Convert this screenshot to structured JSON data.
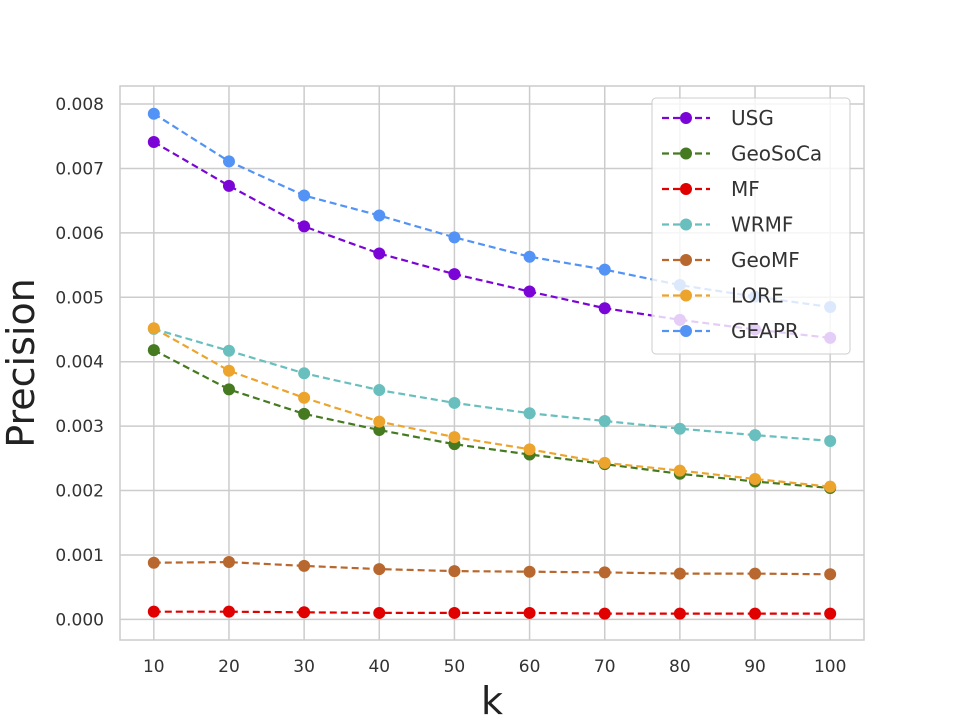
{
  "chart_data": {
    "type": "line",
    "title": "",
    "xlabel": "k",
    "ylabel": "Precision",
    "x": [
      10,
      20,
      30,
      40,
      50,
      60,
      70,
      80,
      90,
      100
    ],
    "x_tick_labels": [
      "10",
      "20",
      "30",
      "40",
      "50",
      "60",
      "70",
      "80",
      "90",
      "100"
    ],
    "y_ticks": [
      0.0,
      0.001,
      0.002,
      0.003,
      0.004,
      0.005,
      0.006,
      0.007,
      0.008
    ],
    "y_tick_labels": [
      "0.000",
      "0.001",
      "0.002",
      "0.003",
      "0.004",
      "0.005",
      "0.006",
      "0.007",
      "0.008"
    ],
    "xlim": [
      5.5,
      104.5
    ],
    "ylim": [
      -0.00032,
      0.00828
    ],
    "grid": true,
    "legend_position": "top-right",
    "line_style": "dashed",
    "marker": "circle",
    "series": [
      {
        "name": "USG",
        "color": "#7b05d6",
        "values": [
          0.00741,
          0.00673,
          0.0061,
          0.00568,
          0.00536,
          0.00509,
          0.00483,
          0.00465,
          0.0045,
          0.00437
        ]
      },
      {
        "name": "GeoSoCa",
        "color": "#457a21",
        "values": [
          0.00418,
          0.00357,
          0.00319,
          0.00294,
          0.00272,
          0.00256,
          0.00241,
          0.00226,
          0.00214,
          0.00204
        ]
      },
      {
        "name": "MF",
        "color": "#e00000",
        "values": [
          0.00012,
          0.00012,
          0.00011,
          0.0001,
          0.0001,
          0.0001,
          9e-05,
          9e-05,
          9e-05,
          9e-05
        ]
      },
      {
        "name": "WRMF",
        "color": "#69bfbe",
        "values": [
          0.00451,
          0.00417,
          0.00382,
          0.00356,
          0.00336,
          0.0032,
          0.00308,
          0.00296,
          0.00286,
          0.00277
        ]
      },
      {
        "name": "GeoMF",
        "color": "#b8682e",
        "values": [
          0.00088,
          0.00089,
          0.00083,
          0.00078,
          0.00075,
          0.00074,
          0.00073,
          0.00071,
          0.00071,
          0.0007
        ]
      },
      {
        "name": "LORE",
        "color": "#eca42c",
        "values": [
          0.00452,
          0.00386,
          0.00344,
          0.00307,
          0.00283,
          0.00264,
          0.00243,
          0.00231,
          0.00218,
          0.00206
        ]
      },
      {
        "name": "GEAPR",
        "color": "#5293f5",
        "values": [
          0.00785,
          0.00711,
          0.00658,
          0.00627,
          0.00593,
          0.00563,
          0.00543,
          0.00519,
          0.00501,
          0.00485
        ]
      }
    ]
  }
}
